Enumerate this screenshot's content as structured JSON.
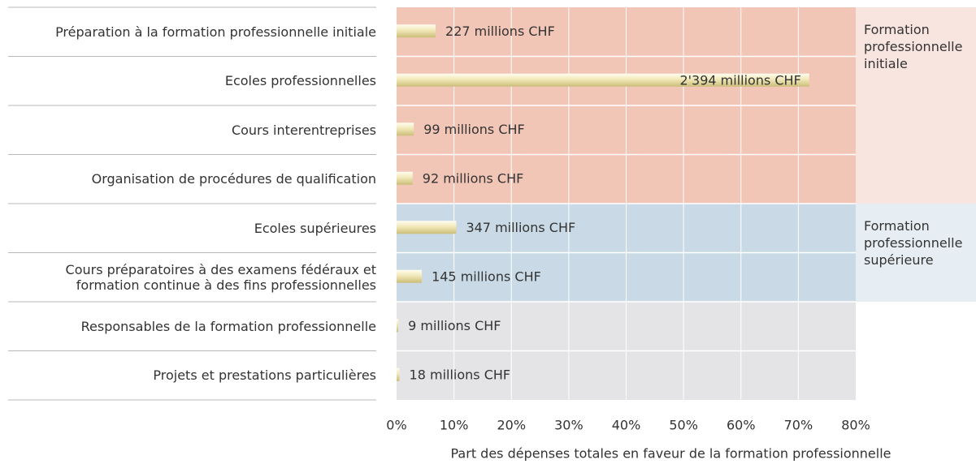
{
  "chart_data": {
    "type": "bar",
    "orientation": "horizontal",
    "categories": [
      "Préparation à la formation professionnelle initiale",
      "Ecoles professionnelles",
      "Cours interentreprises",
      "Organisation de procédures de qualification",
      "Ecoles supérieures",
      "Cours préparatoires à des examens fédéraux et formation continue à des fins professionnelles",
      "Responsables de la formation professionnelle",
      "Projets et prestations particulières"
    ],
    "series": [
      {
        "name": "Formation professionnelle initiale",
        "color": "#f2c6b7",
        "label_color": "#f9e5df",
        "values": [
          6.8,
          71.9,
          3.0,
          2.8,
          null,
          null,
          null,
          null
        ]
      },
      {
        "name": "Formation professionnelle supérieure",
        "color": "#c9dae6",
        "label_color": "#e7eef3",
        "values": [
          null,
          null,
          null,
          null,
          10.4,
          4.4,
          null,
          null
        ]
      },
      {
        "color": "#e4e4e6",
        "label_color": "#ffffff",
        "values": [
          null,
          null,
          null,
          null,
          null,
          null,
          0.3,
          0.5
        ]
      }
    ],
    "amount_labels": [
      "227 millions CHF",
      "2'394 millions CHF",
      "99 millions CHF",
      "92 millions CHF",
      "347 millions CHF",
      "145 millions CHF",
      "9 millions CHF",
      "18 millions CHF"
    ],
    "x_label": "Part des dépenses totales en faveur de la formation professionnelle",
    "xlim": [
      0,
      80
    ],
    "xticks": [
      {
        "value": 0,
        "label": "0%"
      },
      {
        "value": 10,
        "label": "10%"
      },
      {
        "value": 20,
        "label": "20%"
      },
      {
        "value": 30,
        "label": "30%"
      },
      {
        "value": 40,
        "label": "40%"
      },
      {
        "value": 50,
        "label": "50%"
      },
      {
        "value": 60,
        "label": "60%"
      },
      {
        "value": 70,
        "label": "70%"
      },
      {
        "value": 80,
        "label": "80%"
      }
    ],
    "grid": true
  }
}
